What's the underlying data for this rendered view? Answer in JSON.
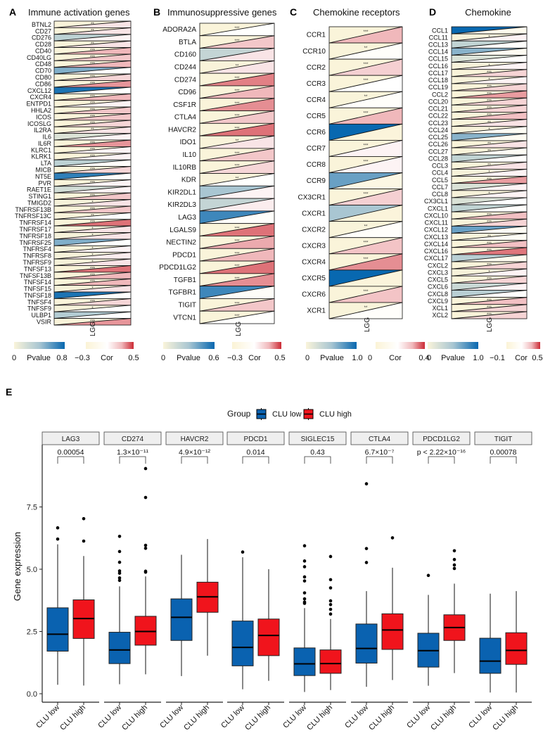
{
  "chart_data": [
    {
      "type": "heatmap",
      "panel": "A",
      "title": "Immune activation genes",
      "xlabel": "LGG",
      "legend": {
        "p_min": "0",
        "p_label": "Pvalue",
        "p_max": "0.8",
        "c_min": "−0.3",
        "c_label": "Cor",
        "c_max": "0.5"
      },
      "p_range": [
        0,
        0.8
      ],
      "cor_range": [
        -0.3,
        0.5
      ],
      "rows": [
        [
          "BTNL2",
          0.005,
          0.15,
          "**"
        ],
        [
          "CD27",
          0.005,
          0.15,
          "**"
        ],
        [
          "CD276",
          0.3,
          0.1,
          ""
        ],
        [
          "CD28",
          0.005,
          0.15,
          "**"
        ],
        [
          "CD40",
          0,
          0.3,
          "***"
        ],
        [
          "CD40LG",
          0,
          0.25,
          "***"
        ],
        [
          "CD48",
          0,
          0.3,
          "***"
        ],
        [
          "CD70",
          0.5,
          0.05,
          ""
        ],
        [
          "CD80",
          0,
          0.2,
          "***"
        ],
        [
          "CD86",
          0,
          0.35,
          "***"
        ],
        [
          "CXCL12",
          0.75,
          0.05,
          ""
        ],
        [
          "CXCR4",
          0,
          0.3,
          "***"
        ],
        [
          "ENTPD1",
          0,
          0.1,
          "***"
        ],
        [
          "HHLA2",
          0,
          0.25,
          "***"
        ],
        [
          "ICOS",
          0,
          0.25,
          "***"
        ],
        [
          "ICOSLG",
          0,
          0.2,
          "***"
        ],
        [
          "IL2RA",
          0.005,
          0.15,
          "**"
        ],
        [
          "IL6",
          0.15,
          0.1,
          ""
        ],
        [
          "IL6R",
          0,
          0.35,
          "***"
        ],
        [
          "KLRC1",
          0,
          0.1,
          "***"
        ],
        [
          "KLRK1",
          0,
          0.1,
          "***"
        ],
        [
          "LTA",
          0.3,
          0.02,
          ""
        ],
        [
          "MICB",
          0,
          0.2,
          "***"
        ],
        [
          "NT5E",
          0.7,
          0.05,
          ""
        ],
        [
          "PVR",
          0,
          0.1,
          "***"
        ],
        [
          "RAET1E",
          0.2,
          0.1,
          ""
        ],
        [
          "STING1",
          0,
          0.25,
          "***"
        ],
        [
          "TMIGD2",
          0.02,
          0.15,
          "*"
        ],
        [
          "TNFRSF13B",
          0,
          0.25,
          "***"
        ],
        [
          "TNFRSF13C",
          0.005,
          0.05,
          "**"
        ],
        [
          "TNFRSF14",
          0,
          0.4,
          "***"
        ],
        [
          "TNFRSF17",
          0.02,
          0.15,
          "*"
        ],
        [
          "TNFRSF18",
          0.02,
          0.15,
          "*"
        ],
        [
          "TNFRSF25",
          0.5,
          0.05,
          ""
        ],
        [
          "TNFRSF4",
          0.02,
          0.1,
          "*"
        ],
        [
          "TNFRSF8",
          0.02,
          0.12,
          "*"
        ],
        [
          "TNFRSF9",
          0.02,
          0.15,
          "*"
        ],
        [
          "TNFSF13",
          0,
          0.4,
          "***"
        ],
        [
          "TNFSF13B",
          0,
          0.3,
          "***"
        ],
        [
          "TNFSF14",
          0,
          0.3,
          "***"
        ],
        [
          "TNFSF15",
          0.02,
          0.15,
          "*"
        ],
        [
          "TNFSF18",
          0.75,
          0.05,
          ""
        ],
        [
          "TNFSF4",
          0,
          0.2,
          "***"
        ],
        [
          "TNFSF9",
          0.02,
          0.05,
          "*"
        ],
        [
          "ULBP1",
          0.35,
          0.05,
          ""
        ],
        [
          "VSIR",
          0,
          0.35,
          "***"
        ]
      ]
    },
    {
      "type": "heatmap",
      "panel": "B",
      "title": "Immunosuppressive genes",
      "xlabel": "LGG",
      "legend": {
        "p_min": "0",
        "p_label": "Pvalue",
        "p_max": "0.6",
        "c_min": "−0.3",
        "c_label": "Cor",
        "c_max": "0.5"
      },
      "p_range": [
        0,
        0.6
      ],
      "cor_range": [
        -0.3,
        0.5
      ],
      "rows": [
        [
          "ADORA2A",
          0,
          0.05,
          "***"
        ],
        [
          "BTLA",
          0,
          0.25,
          "***"
        ],
        [
          "CD160",
          0.2,
          0.15,
          ""
        ],
        [
          "CD244",
          0.005,
          0.15,
          "**"
        ],
        [
          "CD274",
          0,
          0.38,
          "***"
        ],
        [
          "CD96",
          0,
          0.3,
          "***"
        ],
        [
          "CSF1R",
          0,
          0.36,
          "***"
        ],
        [
          "CTLA4",
          0,
          0.25,
          "***"
        ],
        [
          "HAVCR2",
          0,
          0.4,
          "***"
        ],
        [
          "IDO1",
          0.005,
          0.15,
          "**"
        ],
        [
          "IL10",
          0,
          0.25,
          "***"
        ],
        [
          "IL10RB",
          0,
          0.2,
          "***"
        ],
        [
          "KDR",
          0.005,
          0.05,
          "**"
        ],
        [
          "KIR2DL1",
          0.3,
          0.1,
          ""
        ],
        [
          "KIR2DL3",
          0.2,
          0.12,
          ""
        ],
        [
          "LAG3",
          0.5,
          0.02,
          ""
        ],
        [
          "LGALS9",
          0,
          0.4,
          "***"
        ],
        [
          "NECTIN2",
          0,
          0.32,
          "***"
        ],
        [
          "PDCD1",
          0,
          0.3,
          "***"
        ],
        [
          "PDCD1LG2",
          0,
          0.4,
          "***"
        ],
        [
          "TGFB1",
          0,
          0.36,
          "***"
        ],
        [
          "TGFBR1",
          0.5,
          0.0,
          ""
        ],
        [
          "TIGIT",
          0,
          0.25,
          "***"
        ],
        [
          "VTCN1",
          0,
          0.05,
          "***"
        ]
      ]
    },
    {
      "type": "heatmap",
      "panel": "C",
      "title": "Chemokine receptors",
      "xlabel": "LGG",
      "legend": {
        "p_min": "0",
        "p_label": "Pvalue",
        "p_max": "1.0",
        "c_min": "0",
        "c_label": "Cor",
        "c_max": "0.4"
      },
      "p_range": [
        0,
        1.0
      ],
      "cor_range": [
        0,
        0.4
      ],
      "rows": [
        [
          "CCR1",
          0,
          0.3,
          "***"
        ],
        [
          "CCR10",
          0.005,
          0.16,
          "**"
        ],
        [
          "CCR2",
          0,
          0.26,
          "***"
        ],
        [
          "CCR3",
          0,
          0.18,
          "***"
        ],
        [
          "CCR4",
          0.005,
          0.16,
          "**"
        ],
        [
          "CCR5",
          0,
          0.3,
          "***"
        ],
        [
          "CCR6",
          1.0,
          0.02,
          ""
        ],
        [
          "CCR7",
          0,
          0.2,
          "***"
        ],
        [
          "CCR8",
          0,
          0.2,
          "***"
        ],
        [
          "CCR9",
          0.7,
          0.06,
          ""
        ],
        [
          "CX3CR1",
          0,
          0.26,
          "***"
        ],
        [
          "CXCR1",
          0.5,
          0.02,
          ""
        ],
        [
          "CXCR2",
          0.005,
          0.16,
          "**"
        ],
        [
          "CXCR3",
          0,
          0.28,
          "***"
        ],
        [
          "CXCR4",
          0,
          0.33,
          "***"
        ],
        [
          "CXCR5",
          1.0,
          0.02,
          ""
        ],
        [
          "CXCR6",
          0,
          0.28,
          "***"
        ],
        [
          "XCR1",
          0.005,
          0.16,
          "**"
        ]
      ]
    },
    {
      "type": "heatmap",
      "panel": "D",
      "title": "Chemokine",
      "xlabel": "LGG",
      "legend": {
        "p_min": "0",
        "p_label": "Pvalue",
        "p_max": "1.0",
        "c_min": "−0.1",
        "c_label": "Cor",
        "c_max": "0.5"
      },
      "p_range": [
        0,
        1.0
      ],
      "cor_range": [
        -0.1,
        0.5
      ],
      "rows": [
        [
          "CCL1",
          1.0,
          0.05,
          ""
        ],
        [
          "CCL11",
          0.02,
          0.2,
          "*"
        ],
        [
          "CCL13",
          0.35,
          0.15,
          ""
        ],
        [
          "CCL14",
          0.6,
          0.08,
          ""
        ],
        [
          "CCL15",
          0.2,
          0.15,
          ""
        ],
        [
          "CCL16",
          0.02,
          0.2,
          "*"
        ],
        [
          "CCL17",
          0,
          0.28,
          "***"
        ],
        [
          "CCL18",
          0.02,
          0.2,
          "*"
        ],
        [
          "CCL19",
          0,
          0.28,
          "***"
        ],
        [
          "CCL2",
          0,
          0.38,
          "***"
        ],
        [
          "CCL20",
          0,
          0.28,
          "***"
        ],
        [
          "CCL21",
          0,
          0.28,
          "***"
        ],
        [
          "CCL22",
          0,
          0.33,
          "***"
        ],
        [
          "CCL23",
          0.005,
          0.24,
          "**"
        ],
        [
          "CCL24",
          0.02,
          0.1,
          "*"
        ],
        [
          "CCL25",
          0.6,
          0.08,
          ""
        ],
        [
          "CCL26",
          0.005,
          0.24,
          "**"
        ],
        [
          "CCL27",
          0.005,
          0.1,
          "**"
        ],
        [
          "CCL28",
          0.35,
          0.15,
          ""
        ],
        [
          "CCL3",
          0.005,
          0.24,
          "**"
        ],
        [
          "CCL4",
          0.02,
          0.2,
          "*"
        ],
        [
          "CCL5",
          0,
          0.38,
          "***"
        ],
        [
          "CCL7",
          0.2,
          0.2,
          ""
        ],
        [
          "CCL8",
          0.02,
          0.2,
          "*"
        ],
        [
          "CX3CL1",
          0.2,
          0.17,
          ""
        ],
        [
          "CXCL1",
          0.35,
          0.15,
          ""
        ],
        [
          "CXCL10",
          0,
          0.33,
          "***"
        ],
        [
          "CXCL11",
          0,
          0.28,
          "***"
        ],
        [
          "CXCL12",
          0.7,
          0.1,
          ""
        ],
        [
          "CXCL13",
          0.005,
          0.1,
          "**"
        ],
        [
          "CXCL14",
          0,
          0.33,
          "***"
        ],
        [
          "CXCL16",
          0,
          0.42,
          "***"
        ],
        [
          "CXCL17",
          0.4,
          0.06,
          ""
        ],
        [
          "CXCL2",
          0,
          0.28,
          "***"
        ],
        [
          "CXCL3",
          0.02,
          0.2,
          "*"
        ],
        [
          "CXCL5",
          0,
          0.28,
          "***"
        ],
        [
          "CXCL6",
          0.3,
          0.2,
          ""
        ],
        [
          "CXCL8",
          0.4,
          0.15,
          ""
        ],
        [
          "CXCL9",
          0,
          0.33,
          "***"
        ],
        [
          "XCL1",
          0,
          0.28,
          "***"
        ],
        [
          "XCL2",
          0,
          0.28,
          "***"
        ]
      ]
    },
    {
      "type": "box",
      "panel": "E",
      "ylabel": "Gene expression",
      "xlabel": "",
      "ylim": [
        0,
        9.3
      ],
      "yticks": [
        "0.0",
        "2.5",
        "5.0",
        "7.5"
      ],
      "ytick_values": [
        0,
        2.5,
        5.0,
        7.5
      ],
      "legend": {
        "title": "Group",
        "entries": [
          "CLU low",
          "CLU high"
        ],
        "placement": "top"
      },
      "groups": [
        "CLU low",
        "CLU high"
      ],
      "facets": [
        {
          "gene": "LAG3",
          "p": "0.00054",
          "low": {
            "min": 0.36,
            "q1": 1.71,
            "median": 2.39,
            "q3": 3.45,
            "max": 6.0,
            "outliers": [
              6.21,
              6.66
            ]
          },
          "high": {
            "min": 0.33,
            "q1": 2.22,
            "median": 3.02,
            "q3": 3.77,
            "max": 5.53,
            "outliers": [
              6.13,
              7.03
            ]
          }
        },
        {
          "gene": "CD274",
          "p": "1.3×10⁻¹¹",
          "low": {
            "min": 0.38,
            "q1": 1.21,
            "median": 1.76,
            "q3": 2.47,
            "max": 4.31,
            "outliers": [
              4.55,
              4.65,
              4.84,
              4.93,
              5.28,
              5.71,
              6.32
            ]
          },
          "high": {
            "min": 0.78,
            "q1": 1.95,
            "median": 2.5,
            "q3": 3.11,
            "max": 4.71,
            "outliers": [
              4.88,
              4.92,
              5.84,
              5.96,
              7.88,
              9.04
            ]
          }
        },
        {
          "gene": "HAVCR2",
          "p": "4.9×10⁻¹²",
          "low": {
            "min": 0.71,
            "q1": 2.14,
            "median": 3.07,
            "q3": 3.81,
            "max": 5.58,
            "outliers": []
          },
          "high": {
            "min": 1.53,
            "q1": 3.27,
            "median": 3.89,
            "q3": 4.48,
            "max": 6.21,
            "outliers": []
          }
        },
        {
          "gene": "PDCD1",
          "p": "0.014",
          "low": {
            "min": 0.18,
            "q1": 1.12,
            "median": 1.86,
            "q3": 2.92,
            "max": 5.48,
            "outliers": [
              5.69
            ]
          },
          "high": {
            "min": 0.52,
            "q1": 1.53,
            "median": 2.34,
            "q3": 3.0,
            "max": 5.0,
            "outliers": []
          }
        },
        {
          "gene": "SIGLEC15",
          "p": "0.43",
          "low": {
            "min": 0.07,
            "q1": 0.73,
            "median": 1.2,
            "q3": 1.84,
            "max": 3.44,
            "outliers": [
              3.63,
              3.68,
              3.81,
              4.05,
              4.53,
              4.69,
              5.1,
              5.33,
              5.94
            ]
          },
          "high": {
            "min": 0.15,
            "q1": 0.82,
            "median": 1.21,
            "q3": 1.76,
            "max": 3.0,
            "outliers": [
              3.2,
              3.39,
              3.58,
              3.73,
              4.25,
              4.58,
              5.51
            ]
          }
        },
        {
          "gene": "CTLA4",
          "p": "6.7×10⁻⁷",
          "low": {
            "min": 0.28,
            "q1": 1.23,
            "median": 1.82,
            "q3": 2.8,
            "max": 4.12,
            "outliers": [
              5.27,
              5.83,
              8.43
            ]
          },
          "high": {
            "min": 0.55,
            "q1": 1.78,
            "median": 2.56,
            "q3": 3.21,
            "max": 5.06,
            "outliers": [
              6.26
            ]
          }
        },
        {
          "gene": "PDCD1LG2",
          "p": "p < 2.22×10⁻¹⁶",
          "low": {
            "min": 0.32,
            "q1": 1.07,
            "median": 1.73,
            "q3": 2.43,
            "max": 3.97,
            "outliers": [
              4.75
            ]
          },
          "high": {
            "min": 0.83,
            "q1": 2.14,
            "median": 2.66,
            "q3": 3.17,
            "max": 4.42,
            "outliers": [
              5.03,
              5.17,
              5.39,
              5.74
            ]
          }
        },
        {
          "gene": "TIGIT",
          "p": "0.00078",
          "low": {
            "min": 0.05,
            "q1": 0.82,
            "median": 1.31,
            "q3": 2.23,
            "max": 4.02,
            "outliers": []
          },
          "high": {
            "min": 0.05,
            "q1": 1.18,
            "median": 1.74,
            "q3": 2.45,
            "max": 4.12,
            "outliers": []
          }
        }
      ]
    }
  ],
  "panel_letters": [
    "A",
    "B",
    "C",
    "D",
    "E"
  ],
  "colors": {
    "low": "#0a62b0",
    "high": "#f0141c",
    "p_low": "#faf4da",
    "p_mid": "#a9c6d2",
    "p_high": "#0868b0",
    "cor_low": "#fbf3d6",
    "cor_mid": "#ffffff",
    "cor_high": "#cc2b35",
    "strip": "#efefef"
  }
}
